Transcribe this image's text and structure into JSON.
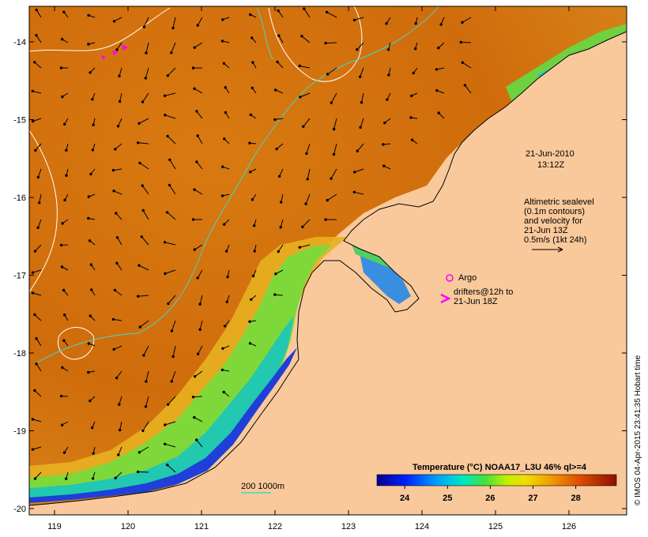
{
  "map": {
    "date": "21-Jun-2010",
    "time": "13:12Z",
    "annotation_lines": [
      "Altimetric sealevel",
      "(0.1m contours)",
      "and velocity for",
      "21-Jun 13Z",
      "0.5m/s (1kt 24h)"
    ],
    "argo_label": "Argo",
    "drifters_label_line1": "drifters@12h to",
    "drifters_label_line2": "21-Jun 18Z",
    "depth_legend": "200  1000m",
    "credit": "© IMOS 04-Apr-2015 23:41:35 Hobart time",
    "x_ticks": [
      "119",
      "120",
      "121",
      "122",
      "123",
      "124",
      "125",
      "126"
    ],
    "y_ticks": [
      "-14",
      "-15",
      "-16",
      "-17",
      "-18",
      "-19",
      "-20"
    ],
    "colorbar": {
      "title": "Temperature (°C) NOAA17_L3U 46% ql>=4",
      "ticks": [
        "24",
        "25",
        "26",
        "27",
        "28"
      ],
      "min": 23.35,
      "max": 28.95
    },
    "colors": {
      "land": "#f9c99b",
      "ocean_warm": "#d9780a",
      "ocean_hot": "#c8620a",
      "coast_green": "#7fd83a",
      "coast_cyan": "#22c8b0",
      "coast_blue": "#1f3fd8",
      "coast_deep": "#0a0a9a",
      "isobath": "#40d8c8",
      "contour": "#ffffff",
      "marker": "#ff00ff"
    }
  }
}
